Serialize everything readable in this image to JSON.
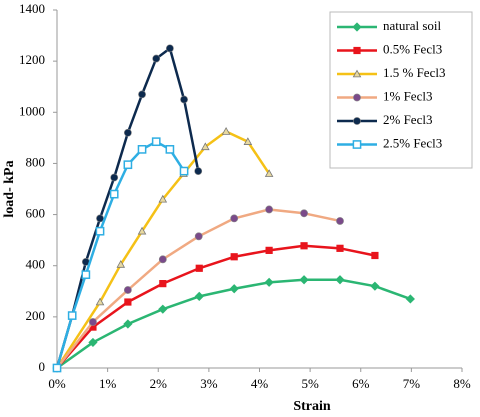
{
  "chart_data": {
    "type": "line",
    "xlabel": "Strain",
    "ylabel": "load- kPa",
    "xlim": [
      0,
      8
    ],
    "xticks": [
      {
        "value": 0,
        "label": "0%"
      },
      {
        "value": 1,
        "label": "1%"
      },
      {
        "value": 2,
        "label": "2%"
      },
      {
        "value": 3,
        "label": "3%"
      },
      {
        "value": 4,
        "label": "4%"
      },
      {
        "value": 5,
        "label": "5%"
      },
      {
        "value": 6,
        "label": "6%"
      },
      {
        "value": 7,
        "label": "7%"
      },
      {
        "value": 8,
        "label": "8%"
      }
    ],
    "ylim": [
      0,
      1400
    ],
    "yticks": [
      0,
      200,
      400,
      600,
      800,
      1000,
      1200,
      1400
    ],
    "grid": false,
    "legend": "top-right",
    "series": [
      {
        "name": "natural soil",
        "color": "#2bb673",
        "marker": "diamond",
        "x": [
          0,
          0.71,
          1.4,
          2.09,
          2.81,
          3.5,
          4.19,
          4.88,
          5.59,
          6.28,
          6.98
        ],
        "values": [
          0,
          100,
          172,
          230,
          280,
          310,
          335,
          345,
          345,
          320,
          270
        ]
      },
      {
        "name": "0.5% Fecl3",
        "color": "#e8141c",
        "marker": "square",
        "x": [
          0,
          0.71,
          1.4,
          2.09,
          2.81,
          3.5,
          4.19,
          4.88,
          5.59,
          6.28
        ],
        "values": [
          0,
          160,
          258,
          330,
          390,
          435,
          460,
          478,
          468,
          440
        ]
      },
      {
        "name": "1.5 % Fecl3",
        "color": "#f5c116",
        "marker": "triangle",
        "x": [
          0,
          0.85,
          1.26,
          1.68,
          2.09,
          2.5,
          2.93,
          3.34,
          3.77,
          4.19
        ],
        "values": [
          0,
          258,
          405,
          535,
          660,
          760,
          865,
          925,
          885,
          760
        ]
      },
      {
        "name": "1% Fecl3",
        "color": "#f0a982",
        "marker": "circle",
        "x": [
          0,
          0.71,
          1.4,
          2.09,
          2.8,
          3.5,
          4.19,
          4.88,
          5.59
        ],
        "values": [
          0,
          180,
          305,
          425,
          515,
          585,
          620,
          605,
          575
        ]
      },
      {
        "name": "2% Fecl3",
        "color": "#0d2a4e",
        "marker": "circle",
        "x": [
          0,
          0.3,
          0.57,
          0.85,
          1.13,
          1.4,
          1.68,
          1.96,
          2.23,
          2.51,
          2.79
        ],
        "values": [
          0,
          205,
          415,
          585,
          745,
          920,
          1070,
          1210,
          1250,
          1050,
          770
        ]
      },
      {
        "name": "2.5% Fecl3",
        "color": "#2eaee3",
        "marker": "opensquare",
        "x": [
          0,
          0.3,
          0.57,
          0.85,
          1.13,
          1.4,
          1.68,
          1.96,
          2.23,
          2.51
        ],
        "values": [
          0,
          205,
          365,
          535,
          680,
          795,
          855,
          885,
          855,
          770
        ]
      }
    ]
  }
}
